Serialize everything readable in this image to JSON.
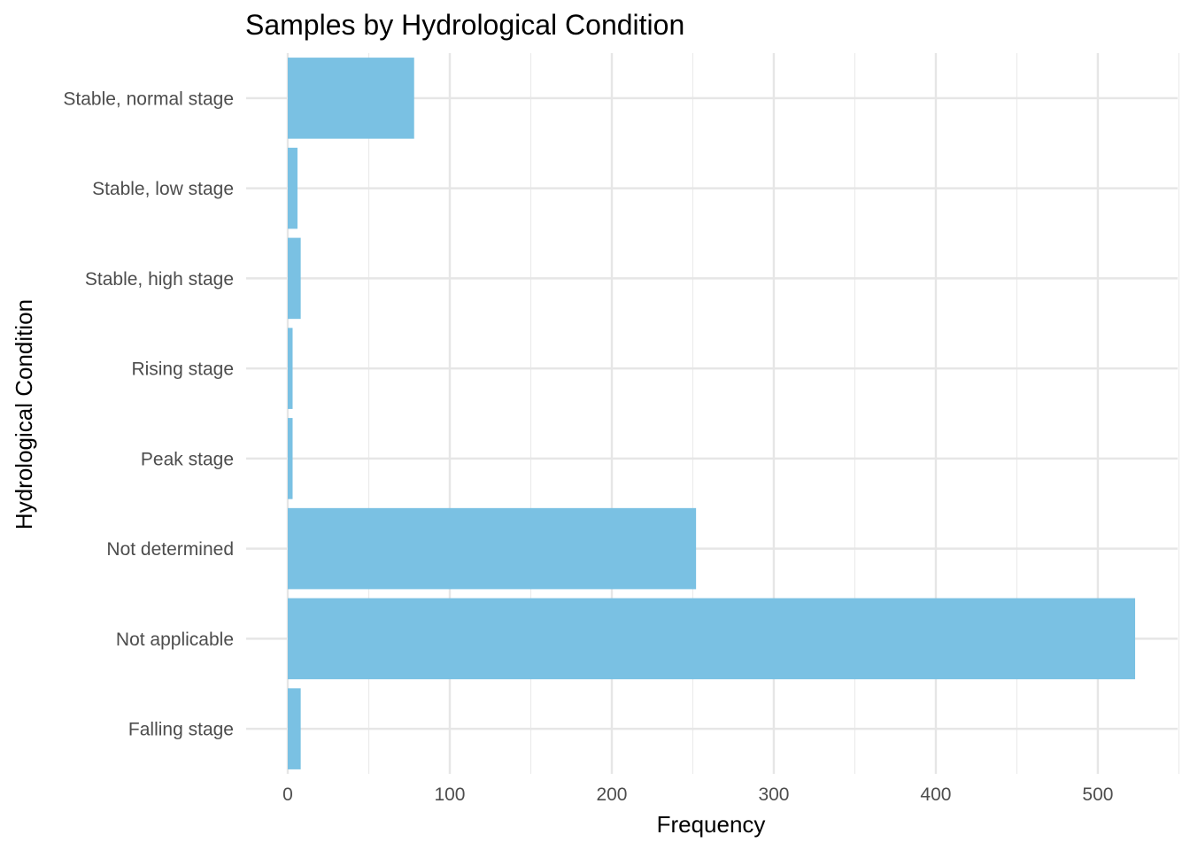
{
  "chart_data": {
    "type": "bar",
    "orientation": "horizontal",
    "title": "Samples by Hydrological Condition",
    "xlabel": "Frequency",
    "ylabel": "Hydrological Condition",
    "categories": [
      "Falling stage",
      "Not applicable",
      "Not determined",
      "Peak stage",
      "Rising stage",
      "Stable, high stage",
      "Stable, low stage",
      "Stable, normal stage"
    ],
    "values": [
      8,
      523,
      252,
      3,
      3,
      8,
      6,
      78
    ],
    "xlim": [
      0,
      550
    ],
    "x_ticks": [
      0,
      100,
      200,
      300,
      400,
      500
    ],
    "bar_color": "#7AC1E3",
    "grid": true,
    "legend": "none"
  }
}
